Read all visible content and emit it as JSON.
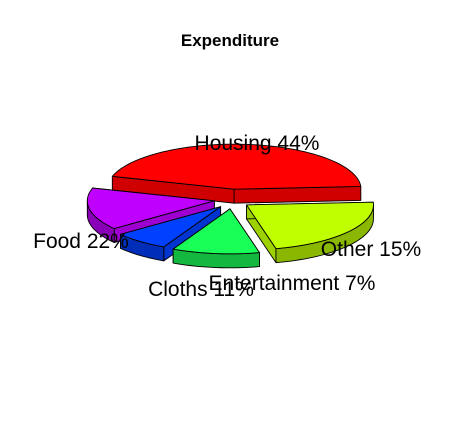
{
  "chart_data": {
    "type": "pie",
    "title": "Expenditure",
    "slices": [
      {
        "label": "Housing 44%",
        "value": 44,
        "color": "#ff0000"
      },
      {
        "label": "Other 15%",
        "value": 15,
        "color": "#bf00ff"
      },
      {
        "label": "Entertainment 7%",
        "value": 7,
        "color": "#0040ff"
      },
      {
        "label": "Cloths 11%",
        "value": 11,
        "color": "#1aff58"
      },
      {
        "label": "Food 22%",
        "value": 22,
        "color": "#bfff00"
      }
    ],
    "style": "3d-exploded"
  }
}
